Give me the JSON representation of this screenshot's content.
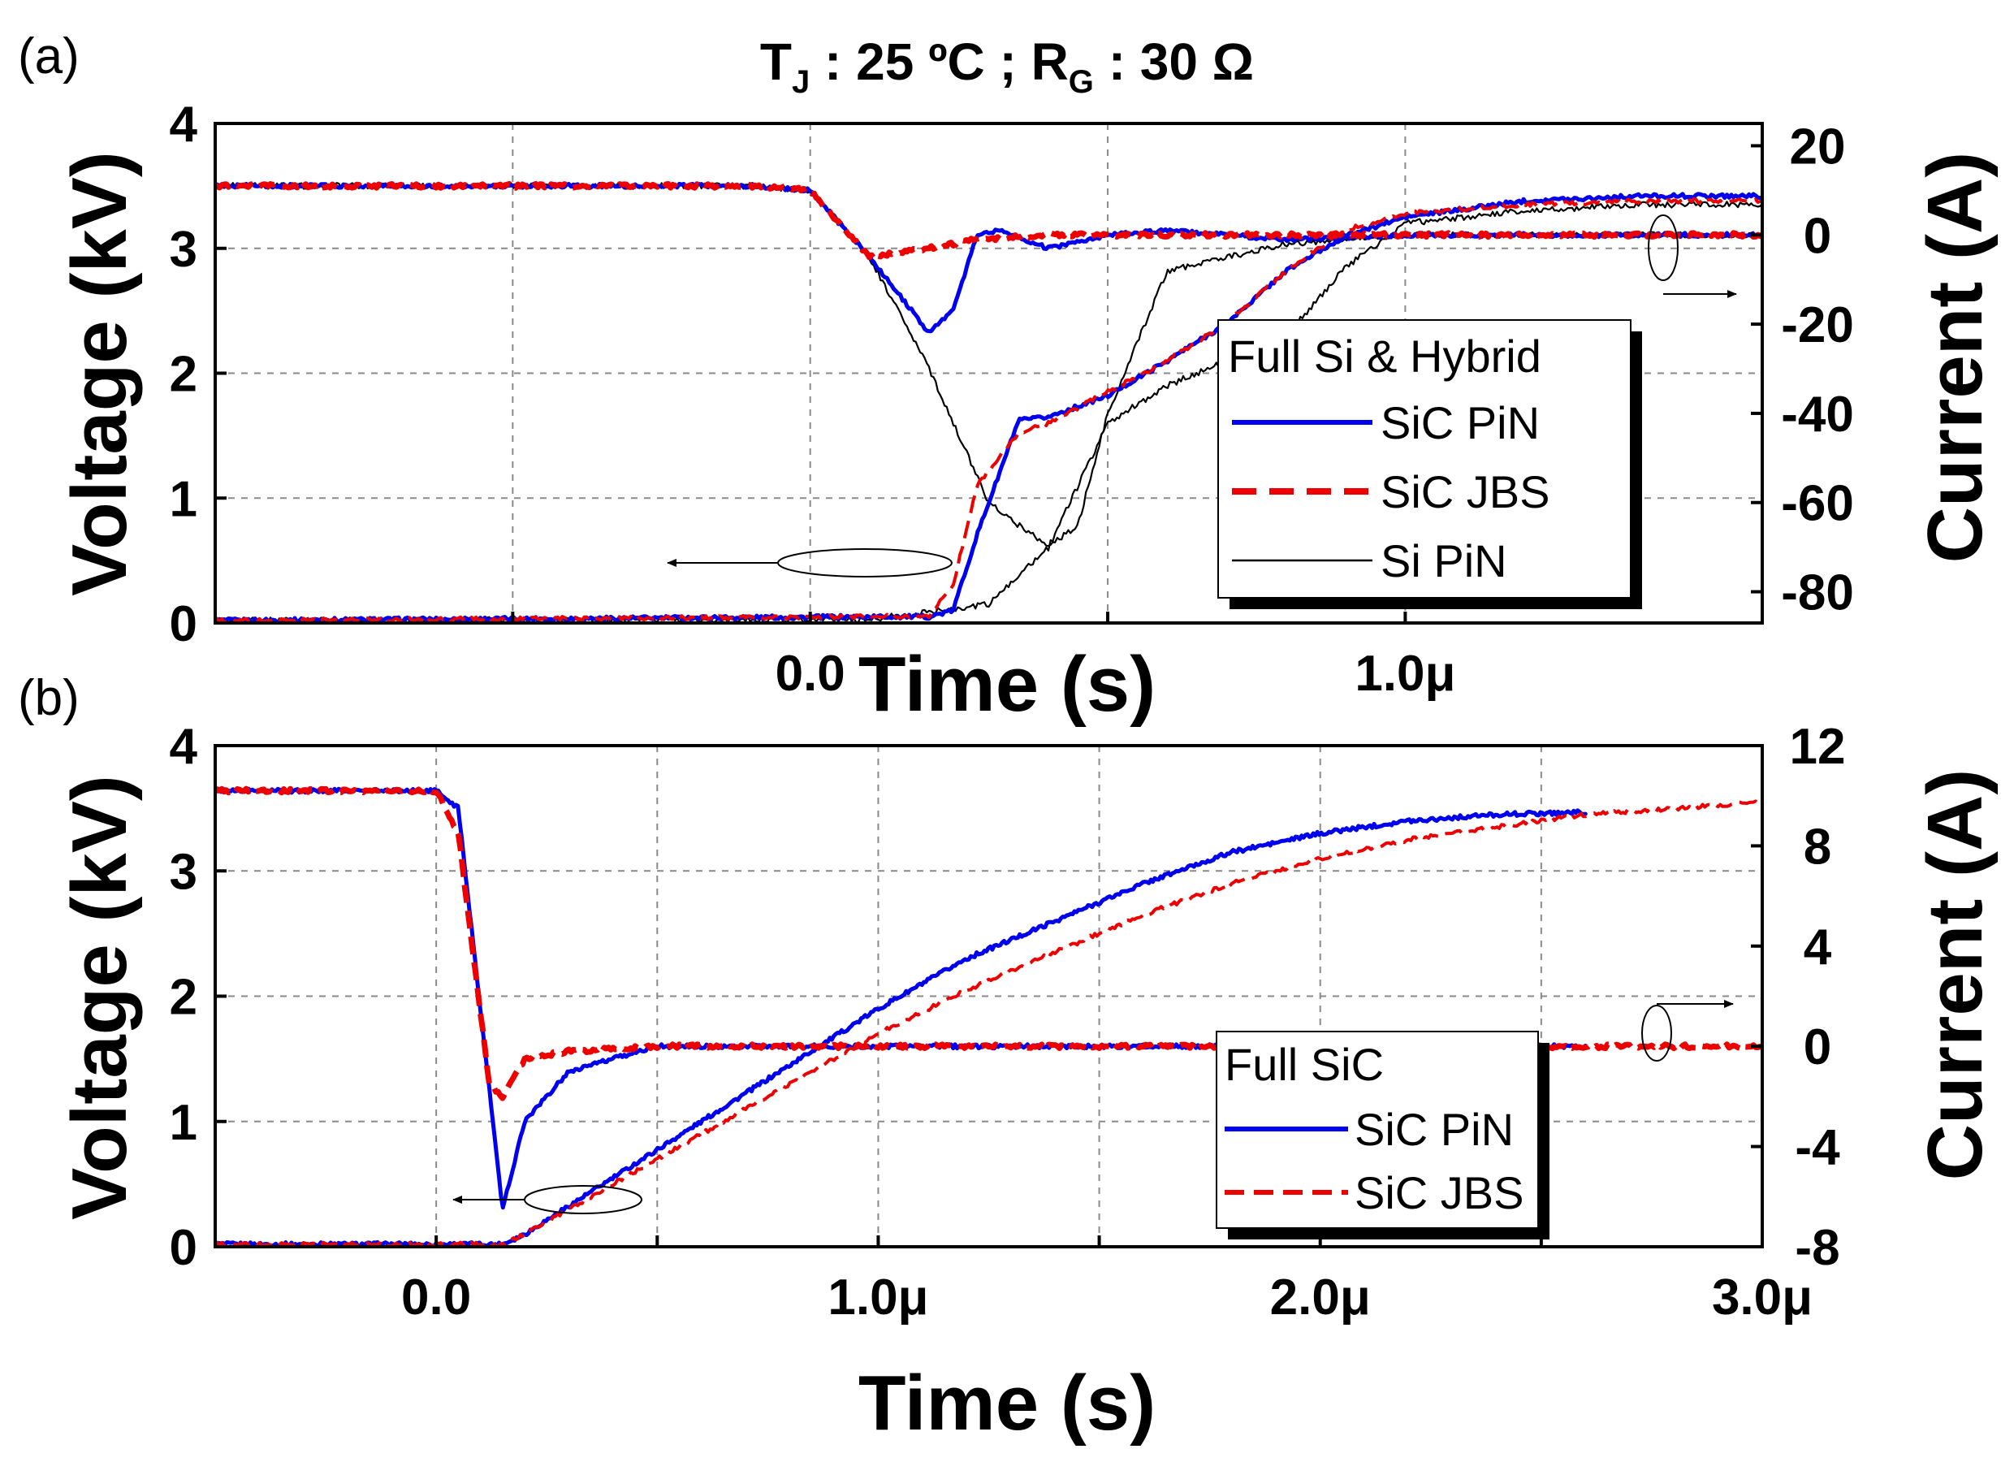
{
  "title": {
    "main": "T",
    "sub1": "J",
    "mid": " : 25 ºC ; R",
    "sub2": "G",
    "tail": " : 30 Ω"
  },
  "chart_data": [
    {
      "panel_label": "(a)",
      "type": "line",
      "xlabel": "Time (s)",
      "ylabel": "Voltage (kV)",
      "y2label": "Current (A)",
      "xlim": [
        -1e-06,
        1.6e-06
      ],
      "ylim": [
        0,
        4
      ],
      "y2lim": [
        -87,
        25
      ],
      "xgrid": [
        -5e-07,
        0.0,
        5e-07,
        1e-06
      ],
      "xticks": [
        {
          "value": 0.0,
          "label": "0.0"
        },
        {
          "value": 1e-06,
          "label": "1.0μ"
        }
      ],
      "yticks": [
        {
          "value": 0,
          "label": "0"
        },
        {
          "value": 1,
          "label": "1"
        },
        {
          "value": 2,
          "label": "2"
        },
        {
          "value": 3,
          "label": "3"
        },
        {
          "value": 4,
          "label": "4"
        }
      ],
      "y2ticks": [
        {
          "value": 20,
          "label": "20"
        },
        {
          "value": 0,
          "label": "0"
        },
        {
          "value": -20,
          "label": "-20"
        },
        {
          "value": -40,
          "label": "-40"
        },
        {
          "value": -60,
          "label": "-60"
        },
        {
          "value": -80,
          "label": "-80"
        }
      ],
      "legend": {
        "title": "Full Si & Hybrid",
        "position": "lower-right",
        "entries": [
          {
            "label": "SiC PiN",
            "color": "#0000ee",
            "style": "solid"
          },
          {
            "label": "SiC JBS",
            "color": "#ee0000",
            "style": "dashed"
          },
          {
            "label": "Si PiN",
            "color": "#000000",
            "style": "thin"
          }
        ]
      },
      "annotations": {
        "voltage_arrow": "left",
        "current_arrow": "right"
      },
      "series": [
        {
          "name": "SiC PiN",
          "quantity": "voltage",
          "axis": "left",
          "color": "#0000ee",
          "style": "solid",
          "x": [
            -1e-06,
            1e-07,
            2e-07,
            2.4e-07,
            2.8e-07,
            3.5e-07,
            4e-07,
            5e-07,
            6e-07,
            7e-07,
            8e-07,
            9e-07,
            1e-06,
            1.2e-06,
            1.4e-06,
            1.6e-06
          ],
          "y": [
            0.02,
            0.05,
            0.05,
            0.1,
            0.7,
            1.62,
            1.65,
            1.82,
            2.1,
            2.4,
            2.82,
            3.1,
            3.25,
            3.38,
            3.42,
            3.42
          ]
        },
        {
          "name": "SiC JBS",
          "quantity": "voltage",
          "axis": "left",
          "color": "#ee0000",
          "style": "dashed",
          "x": [
            -1e-06,
            1e-07,
            2e-07,
            2.4e-07,
            2.8e-07,
            3.5e-07,
            4e-07,
            5e-07,
            6e-07,
            7e-07,
            8e-07,
            9e-07,
            1e-06,
            1.2e-06,
            1.4e-06,
            1.6e-06
          ],
          "y": [
            0.02,
            0.05,
            0.06,
            0.3,
            1.1,
            1.52,
            1.6,
            1.85,
            2.1,
            2.4,
            2.82,
            3.15,
            3.28,
            3.35,
            3.38,
            3.38
          ]
        },
        {
          "name": "Si PiN",
          "quantity": "voltage",
          "axis": "left",
          "color": "#000000",
          "style": "thin",
          "x": [
            -1e-06,
            1e-07,
            3e-07,
            4e-07,
            5e-07,
            6e-07,
            7e-07,
            8e-07,
            9e-07,
            1e-06,
            1.2e-06,
            1.4e-06,
            1.6e-06
          ],
          "y": [
            0.02,
            0.03,
            0.15,
            0.6,
            1.6,
            1.9,
            2.1,
            2.3,
            2.85,
            3.2,
            3.3,
            3.35,
            3.35
          ]
        },
        {
          "name": "SiC PiN",
          "quantity": "current",
          "axis": "right",
          "color": "#0000ee",
          "style": "solid",
          "x": [
            -1e-06,
            -1e-07,
            0.0,
            1e-07,
            2e-07,
            2.4e-07,
            2.8e-07,
            3.2e-07,
            4e-07,
            5e-07,
            6e-07,
            8e-07,
            1e-06,
            1.6e-06
          ],
          "y": [
            11,
            11,
            10,
            -5,
            -22,
            -17,
            0,
            1,
            -3,
            0,
            1,
            -1,
            0,
            0
          ]
        },
        {
          "name": "SiC JBS",
          "quantity": "current",
          "axis": "right",
          "color": "#ee0000",
          "style": "dashed",
          "x": [
            -1e-06,
            -1e-07,
            0.0,
            1e-07,
            2e-07,
            2.4e-07,
            2.8e-07,
            4e-07,
            6e-07,
            8e-07,
            1e-06,
            1.6e-06
          ],
          "y": [
            11,
            11,
            10,
            -5,
            -3,
            -2,
            -1,
            0,
            0,
            0,
            0,
            0
          ]
        },
        {
          "name": "Si PiN",
          "quantity": "current",
          "axis": "right",
          "color": "#000000",
          "style": "thin",
          "x": [
            -1e-06,
            -1e-07,
            0.0,
            1e-07,
            2e-07,
            3e-07,
            4e-07,
            4.5e-07,
            5e-07,
            6e-07,
            7e-07,
            8e-07,
            1e-06,
            1.6e-06
          ],
          "y": [
            11,
            11,
            10,
            -5,
            -30,
            -60,
            -70,
            -65,
            -40,
            -8,
            -5,
            -2,
            0,
            0
          ]
        }
      ]
    },
    {
      "panel_label": "(b)",
      "type": "line",
      "xlabel": "Time (s)",
      "ylabel": "Voltage (kV)",
      "y2label": "Current (A)",
      "xlim": [
        -5e-07,
        3e-06
      ],
      "ylim": [
        0,
        4
      ],
      "y2lim": [
        -8,
        12
      ],
      "xgrid": [
        0.0,
        5e-07,
        1e-06,
        1.5e-06,
        2e-06,
        2.5e-06
      ],
      "xticks": [
        {
          "value": 0.0,
          "label": "0.0"
        },
        {
          "value": 1e-06,
          "label": "1.0μ"
        },
        {
          "value": 2e-06,
          "label": "2.0μ"
        },
        {
          "value": 3e-06,
          "label": "3.0μ"
        }
      ],
      "yticks": [
        {
          "value": 0,
          "label": "0"
        },
        {
          "value": 1,
          "label": "1"
        },
        {
          "value": 2,
          "label": "2"
        },
        {
          "value": 3,
          "label": "3"
        },
        {
          "value": 4,
          "label": "4"
        }
      ],
      "y2ticks": [
        {
          "value": 12,
          "label": "12"
        },
        {
          "value": 8,
          "label": "8"
        },
        {
          "value": 4,
          "label": "4"
        },
        {
          "value": 0,
          "label": "0"
        },
        {
          "value": -4,
          "label": "-4"
        },
        {
          "value": -8,
          "label": "-8"
        }
      ],
      "legend": {
        "title": "Full SiC",
        "position": "lower-right",
        "entries": [
          {
            "label": "SiC PiN",
            "color": "#0000ee",
            "style": "solid"
          },
          {
            "label": "SiC JBS",
            "color": "#ee0000",
            "style": "dashed"
          }
        ]
      },
      "annotations": {
        "voltage_arrow": "left",
        "current_arrow": "right"
      },
      "series": [
        {
          "name": "SiC PiN",
          "quantity": "voltage",
          "axis": "left",
          "color": "#0000ee",
          "style": "solid",
          "x": [
            -5e-07,
            1.5e-07,
            2e-07,
            4e-07,
            6e-07,
            8e-07,
            1e-06,
            1.2e-06,
            1.4e-06,
            1.6e-06,
            1.8e-06,
            2e-06,
            2.2e-06,
            2.4e-06,
            2.6e-06
          ],
          "y": [
            0.02,
            0.02,
            0.1,
            0.55,
            1.0,
            1.45,
            1.9,
            2.3,
            2.6,
            2.9,
            3.15,
            3.3,
            3.4,
            3.45,
            3.47
          ]
        },
        {
          "name": "SiC JBS",
          "quantity": "voltage",
          "axis": "left",
          "color": "#ee0000",
          "style": "dashed",
          "x": [
            -5e-07,
            1.5e-07,
            2e-07,
            4e-07,
            6e-07,
            8e-07,
            1e-06,
            1.2e-06,
            1.4e-06,
            1.6e-06,
            1.8e-06,
            2e-06,
            2.2e-06,
            2.4e-06,
            2.6e-06,
            2.8e-06,
            3e-06
          ],
          "y": [
            0.02,
            0.02,
            0.1,
            0.5,
            0.9,
            1.3,
            1.7,
            2.05,
            2.35,
            2.65,
            2.9,
            3.1,
            3.25,
            3.35,
            3.45,
            3.5,
            3.55
          ]
        },
        {
          "name": "SiC PiN",
          "quantity": "current",
          "axis": "right",
          "color": "#0000ee",
          "style": "solid",
          "x": [
            -5e-07,
            0.0,
            5e-08,
            1.5e-07,
            2e-07,
            3e-07,
            5e-07,
            1e-06,
            2e-06,
            2.6e-06
          ],
          "y": [
            10.2,
            10.2,
            9.5,
            -6.5,
            -3,
            -1,
            0,
            0,
            0,
            0
          ]
        },
        {
          "name": "SiC JBS",
          "quantity": "current",
          "axis": "right",
          "color": "#ee0000",
          "style": "dashed",
          "x": [
            -5e-07,
            0.0,
            5e-08,
            1.2e-07,
            1.5e-07,
            2e-07,
            3e-07,
            5e-07,
            1e-06,
            2e-06,
            3e-06
          ],
          "y": [
            10.2,
            10.2,
            8.5,
            -1.5,
            -2,
            -0.5,
            -0.2,
            0,
            0,
            0,
            0
          ]
        }
      ]
    }
  ]
}
